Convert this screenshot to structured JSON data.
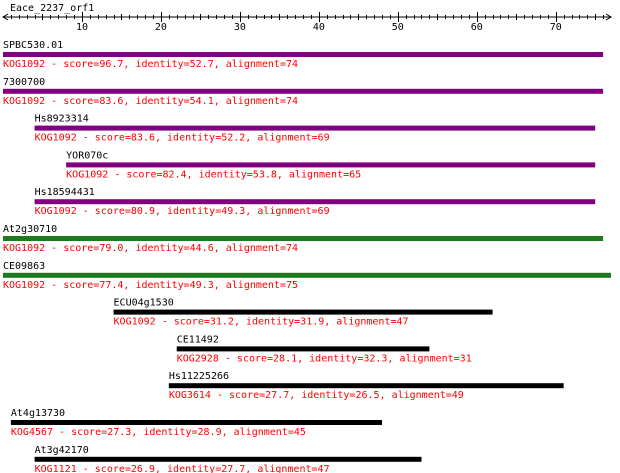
{
  "query": {
    "name": "Eace_2237_orf1",
    "axis_max": 77,
    "ticks": [
      10,
      20,
      30,
      40,
      50,
      60,
      70
    ]
  },
  "colors": {
    "purple": "#800080",
    "green": "#1e7a1e",
    "black": "#000000",
    "annotation": "#ff0000",
    "label": "#000000"
  },
  "hits": [
    {
      "name": "SPBC530.01",
      "start": 1,
      "end": 76,
      "color": "purple",
      "annotation": "KOG1092 - score=96.7, identity=52.7, alignment=74"
    },
    {
      "name": "7300700",
      "start": 1,
      "end": 76,
      "color": "purple",
      "annotation": "KOG1092 - score=83.6, identity=54.1, alignment=74"
    },
    {
      "name": "Hs8923314",
      "start": 5,
      "end": 75,
      "color": "purple",
      "annotation": "KOG1092 - score=83.6, identity=52.2, alignment=69"
    },
    {
      "name": "YOR070c",
      "start": 9,
      "end": 75,
      "color": "purple",
      "annotation": "KOG1092 - score=82.4, identity=53.8, alignment=65"
    },
    {
      "name": "Hs18594431",
      "start": 5,
      "end": 75,
      "color": "purple",
      "annotation": "KOG1092 - score=80.9, identity=49.3, alignment=69"
    },
    {
      "name": "At2g30710",
      "start": 1,
      "end": 76,
      "color": "green",
      "annotation": "KOG1092 - score=79.0, identity=44.6, alignment=74"
    },
    {
      "name": "CE09863",
      "start": 1,
      "end": 77,
      "color": "green",
      "annotation": "KOG1092 - score=77.4, identity=49.3, alignment=75"
    },
    {
      "name": "ECU04g1530",
      "start": 15,
      "end": 62,
      "color": "black",
      "annotation": "KOG1092 - score=31.2, identity=31.9, alignment=47"
    },
    {
      "name": "CE11492",
      "start": 23,
      "end": 54,
      "color": "black",
      "annotation": "KOG2928 - score=28.1, identity=32.3, alignment=31"
    },
    {
      "name": "Hs11225266",
      "start": 22,
      "end": 71,
      "color": "black",
      "annotation": "KOG3614 - score=27.7, identity=26.5, alignment=49"
    },
    {
      "name": "At4g13730",
      "start": 2,
      "end": 48,
      "color": "black",
      "annotation": "KOG4567 - score=27.3, identity=28.9, alignment=45"
    },
    {
      "name": "At3g42170",
      "start": 5,
      "end": 53,
      "color": "black",
      "annotation": "KOG1121 - score=26.9, identity=27.7, alignment=47"
    }
  ]
}
